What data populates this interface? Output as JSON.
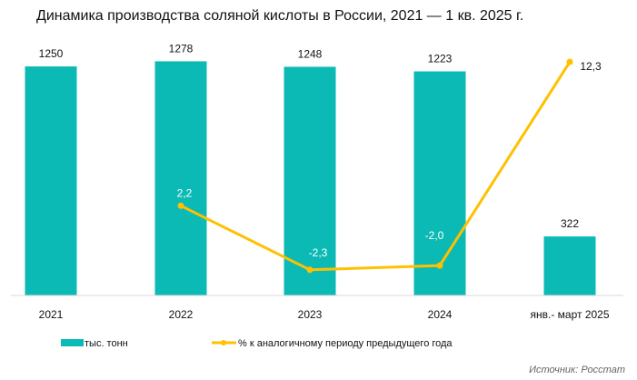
{
  "chart_data": {
    "type": "bar+line",
    "title": "Динамика производства соляной кислоты в России, 2021 — 1 кв. 2025  г.",
    "categories": [
      "2021",
      "2022",
      "2023",
      "2024",
      "янв.- март 2025"
    ],
    "series": [
      {
        "name": "тыс. тонн",
        "type": "bar",
        "axis": "primary",
        "values": [
          1250,
          1278,
          1248,
          1223,
          322
        ],
        "labels": [
          "1250",
          "1278",
          "1248",
          "1223",
          "322"
        ]
      },
      {
        "name": "% к аналогичному периоду предыдущего года",
        "type": "line",
        "axis": "secondary",
        "values": [
          null,
          2.2,
          -2.3,
          -2.0,
          12.3
        ],
        "labels": [
          "",
          "2,2",
          "-2,3",
          "-2,0",
          "12,3"
        ]
      }
    ],
    "ylim": [
      0,
      1290
    ],
    "y2lim": [
      -4.1,
      12.5
    ],
    "grid": false,
    "legend": "bottom",
    "colors": {
      "bar": "#0BBAB5",
      "line": "#FFC000"
    },
    "source": "Источник: Росстат"
  }
}
